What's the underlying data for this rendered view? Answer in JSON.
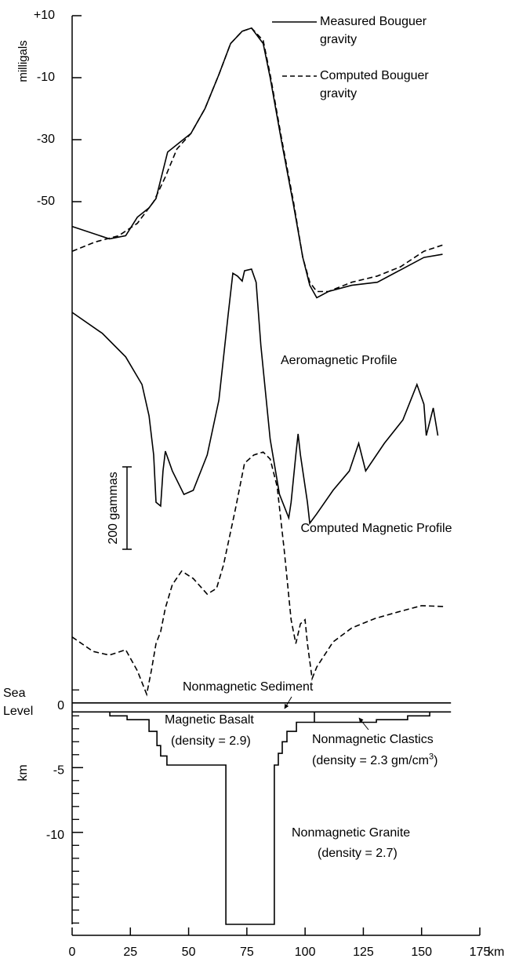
{
  "chart_data": [
    {
      "type": "line",
      "ylabel": "milligals",
      "xlim": [
        0,
        175
      ],
      "ylim": [
        -82,
        10
      ],
      "yticks": [
        {
          "value": 10,
          "label": "+10"
        },
        -10,
        -30,
        -50
      ],
      "series": [
        {
          "name": "Measured Bouguer gravity",
          "color": "#000000",
          "dash": false,
          "x": [
            0,
            16,
            23,
            28,
            33,
            36,
            38,
            41,
            46,
            51,
            57,
            63,
            68,
            73,
            77,
            82,
            85,
            90,
            95,
            99,
            102,
            105,
            110,
            120,
            131,
            141,
            151,
            159
          ],
          "values": [
            -58,
            -62,
            -61,
            -55,
            -52,
            -49,
            -43,
            -34,
            -31,
            -28,
            -20,
            -9,
            1,
            5,
            6,
            1,
            -10,
            -31,
            -51,
            -68,
            -77,
            -81,
            -79,
            -77,
            -76,
            -72,
            -68,
            -67
          ]
        },
        {
          "name": "Computed Bouguer gravity",
          "color": "#000000",
          "dash": true,
          "x": [
            0,
            10,
            20,
            28,
            35,
            40,
            45,
            51,
            57,
            63,
            68,
            73,
            77,
            82,
            85,
            90,
            95,
            99,
            102,
            105,
            110,
            120,
            131,
            141,
            151,
            159
          ],
          "values": [
            -66,
            -63,
            -61,
            -57,
            -50,
            -42,
            -33,
            -28,
            -20,
            -9,
            1,
            5,
            6,
            2,
            -9,
            -30,
            -50,
            -68,
            -76,
            -79,
            -79,
            -76,
            -74,
            -71,
            -66,
            -64
          ]
        }
      ]
    },
    {
      "type": "line",
      "xlim": [
        0,
        175
      ],
      "ylim": [
        0,
        1100
      ],
      "scale_bar": {
        "value": 200,
        "label": "200 gammas"
      },
      "series": [
        {
          "name": "Aeromagnetic Profile",
          "color": "#000000",
          "dash": false,
          "x": [
            0,
            13,
            23,
            30,
            33,
            35,
            36,
            38,
            39,
            40,
            43,
            48,
            52,
            58,
            63,
            67,
            69,
            71,
            73,
            74,
            77,
            79,
            81,
            85,
            89,
            93,
            94,
            96,
            97,
            98,
            101,
            102,
            105,
            112,
            119,
            123,
            126,
            134,
            142,
            148,
            151,
            152,
            155,
            157
          ],
          "values": [
            956,
            905,
            848,
            781,
            705,
            610,
            495,
            486,
            571,
            619,
            571,
            514,
            524,
            610,
            743,
            952,
            1051,
            1044,
            1032,
            1057,
            1061,
            1029,
            876,
            648,
            514,
            457,
            495,
            610,
            661,
            610,
            495,
            444,
            467,
            524,
            571,
            638,
            571,
            638,
            695,
            781,
            733,
            657,
            724,
            657
          ]
        },
        {
          "name": "Computed Magnetic Profile",
          "color": "#000000",
          "dash": true,
          "x": [
            0,
            9,
            16,
            23,
            28,
            32,
            34,
            36,
            38,
            40,
            43,
            47,
            52,
            58,
            62,
            65,
            70,
            74,
            78,
            82,
            85,
            88,
            91,
            94,
            96,
            98,
            100,
            101,
            103,
            105,
            112,
            120,
            130,
            140,
            150,
            160
          ],
          "values": [
            168,
            133,
            124,
            137,
            86,
            29,
            86,
            152,
            181,
            238,
            295,
            328,
            310,
            272,
            286,
            343,
            476,
            590,
            610,
            617,
            600,
            533,
            381,
            210,
            152,
            200,
            210,
            152,
            67,
            95,
            156,
            190,
            213,
            229,
            244,
            242
          ]
        }
      ]
    },
    {
      "type": "section",
      "ylabel": "km",
      "sea_level_label": "Sea Level",
      "xlabel": "km",
      "xlim": [
        0,
        175
      ],
      "ylim": [
        -17.1,
        1.5
      ],
      "xticks": [
        0,
        25,
        50,
        75,
        100,
        125,
        150,
        175
      ],
      "yticks": [
        0,
        -5,
        -10
      ],
      "minor_yticks": [
        1,
        -1,
        -2,
        -3,
        -4,
        -6,
        -7,
        -8,
        -9,
        -11,
        -12,
        -13,
        -14,
        -15,
        -16,
        -17
      ],
      "boundaries": [
        {
          "x": [
            0,
            162.6
          ],
          "values": [
            0,
            0
          ]
        },
        {
          "x": [
            0,
            162.6
          ],
          "values": [
            -0.7,
            -0.7
          ]
        },
        {
          "x": [
            16.2,
            16.2,
            23.6,
            23.6,
            33,
            33,
            36.4,
            36.4,
            38,
            38,
            40.7,
            40.7,
            66,
            66,
            86.8,
            86.8,
            88.5,
            88.5,
            90.2,
            90.2,
            92.2,
            92.2,
            96.3,
            96.3,
            130.6,
            130.6,
            144,
            144,
            153.5,
            153.5
          ],
          "values": [
            -0.7,
            -1.0,
            -1.0,
            -1.3,
            -1.3,
            -2.2,
            -2.2,
            -3.3,
            -3.3,
            -4.1,
            -4.1,
            -4.8,
            -4.8,
            -17.1,
            -17.1,
            -4.8,
            -4.8,
            -3.9,
            -3.9,
            -3.0,
            -3.0,
            -2.2,
            -2.2,
            -1.5,
            -1.5,
            -1.3,
            -1.3,
            -1.0,
            -1.0,
            -0.7
          ]
        },
        {
          "x": [
            104,
            104
          ],
          "values": [
            -0.7,
            -1.5
          ]
        }
      ],
      "labels": [
        "Nonmagnetic Sediment",
        "Magnetic Basalt",
        "(density = 2.9)",
        "Nonmagnetic Clastics",
        [
          "(density = 2.3 gm/cm",
          "3",
          ")"
        ],
        "Nonmagnetic Granite",
        "(density = 2.7)"
      ]
    }
  ]
}
